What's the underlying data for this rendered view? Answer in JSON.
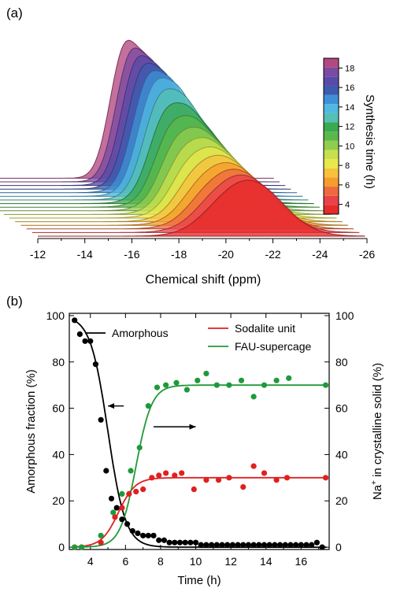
{
  "panel_labels": {
    "a": "(a)",
    "b": "(b)"
  },
  "chart_data": [
    {
      "type": "area",
      "panel": "(a)",
      "xlabel": "Chemical shift (ppm)",
      "xlim": [
        -12,
        -26
      ],
      "xticks": [
        "-12",
        "-14",
        "-16",
        "-18",
        "-20",
        "-22",
        "-24",
        "-26"
      ],
      "colorbar": {
        "label": "Synthesis time (h)",
        "range": [
          3,
          19
        ],
        "ticks": [
          "4",
          "6",
          "8",
          "10",
          "12",
          "14",
          "16",
          "18"
        ]
      },
      "spectra_times_h": [
        3,
        4,
        5,
        6,
        7,
        8,
        9,
        10,
        11,
        12,
        13,
        14,
        15,
        16,
        17,
        18,
        19
      ],
      "colors": [
        "#e52a2a",
        "#e9424a",
        "#ee6a3c",
        "#f59d2c",
        "#f7c13e",
        "#e7e84a",
        "#c7e04d",
        "#8fcd4e",
        "#5ab94a",
        "#3aa94f",
        "#55c0b4",
        "#4fb9e2",
        "#3f8fd6",
        "#3d5bb0",
        "#5a4aa8",
        "#7b4aa2",
        "#b34880"
      ],
      "peaks_ppm": [
        -19.5,
        -20.7,
        -22.0
      ]
    },
    {
      "type": "scatter",
      "panel": "(b)",
      "xlabel": "Time (h)",
      "ylabel_left": "Amorphous fraction (%)",
      "ylabel_right_prefix": "Na",
      "ylabel_right_sup": "+",
      "ylabel_right_suffix": " in crystalline solid (%)",
      "xlim": [
        2.8,
        17.6
      ],
      "ylim": [
        -1,
        101
      ],
      "xticks": [
        "4",
        "6",
        "8",
        "10",
        "12",
        "14",
        "16"
      ],
      "yticks": [
        "0",
        "20",
        "40",
        "60",
        "80",
        "100"
      ],
      "legend": [
        "Amorphous",
        "Sodalite unit",
        "FAU-supercage"
      ],
      "series": [
        {
          "name": "Amorphous",
          "color": "#000000",
          "x": [
            3.1,
            3.4,
            3.7,
            4.0,
            4.3,
            4.6,
            4.9,
            5.2,
            5.5,
            5.8,
            6.1,
            6.4,
            6.7,
            7.0,
            7.3,
            7.6,
            7.9,
            8.2,
            8.5,
            8.8,
            9.1,
            9.4,
            9.7,
            10.0,
            10.3,
            10.6,
            10.9,
            11.2,
            11.5,
            11.8,
            12.1,
            12.4,
            12.7,
            13.0,
            13.3,
            13.6,
            13.9,
            14.2,
            14.5,
            14.8,
            15.1,
            15.4,
            15.7,
            16.0,
            16.3,
            16.6,
            16.9,
            17.2
          ],
          "y": [
            98,
            92,
            89,
            89,
            79,
            55,
            33,
            21,
            17,
            12,
            10,
            7,
            6,
            5,
            5,
            5,
            3,
            3,
            2,
            2,
            2,
            2,
            2,
            2,
            1,
            1,
            1,
            1,
            1,
            1,
            1,
            1,
            1,
            1,
            1,
            1,
            1,
            1,
            1,
            1,
            1,
            1,
            1,
            1,
            1,
            1,
            2,
            0
          ]
        },
        {
          "name": "Sodalite unit",
          "color": "#e02020",
          "x": [
            3.1,
            3.5,
            4.6,
            5.4,
            5.8,
            6.2,
            6.6,
            7.0,
            7.5,
            7.9,
            8.3,
            8.8,
            9.2,
            9.9,
            10.6,
            11.3,
            11.9,
            12.7,
            13.3,
            13.9,
            14.6,
            15.2,
            17.4
          ],
          "y": [
            0,
            0,
            2,
            13,
            17,
            23,
            24,
            25,
            30,
            31,
            32,
            31,
            32,
            25,
            29,
            29,
            30,
            26,
            35,
            32,
            29,
            30,
            30
          ]
        },
        {
          "name": "FAU-supercage",
          "color": "#1f9a3a",
          "x": [
            3.1,
            3.5,
            4.6,
            5.3,
            5.8,
            6.3,
            6.8,
            7.3,
            7.8,
            8.3,
            8.9,
            9.5,
            10.1,
            10.6,
            11.2,
            11.9,
            12.6,
            13.3,
            13.9,
            14.6,
            15.3,
            17.4
          ],
          "y": [
            0,
            0,
            5,
            15,
            23,
            33,
            43,
            61,
            69,
            70,
            71,
            68,
            72,
            75,
            70,
            70,
            72,
            65,
            70,
            72,
            73,
            70
          ]
        }
      ],
      "arrows": [
        {
          "from": [
            5.9,
            61
          ],
          "to": [
            5.0,
            61
          ],
          "meaning": "left axis"
        },
        {
          "from": [
            7.6,
            52
          ],
          "to": [
            10.0,
            52
          ],
          "meaning": "right axis"
        }
      ]
    }
  ]
}
